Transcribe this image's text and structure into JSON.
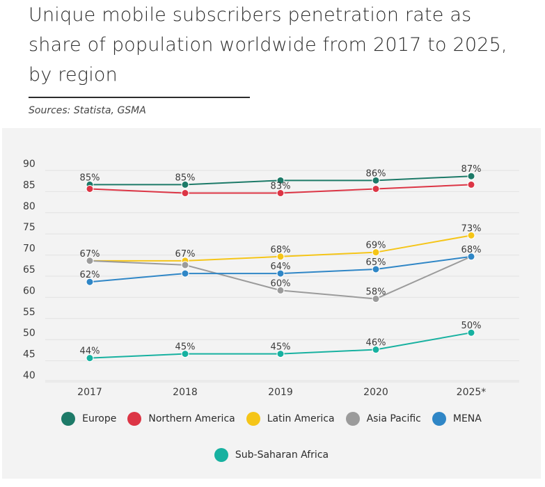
{
  "header": {
    "title": "Unique mobile subscribers penetration rate as share of population worldwide from 2017 to 2025, by region",
    "sources": "Sources: Statista, GSMA"
  },
  "chart_data": {
    "type": "line",
    "categories": [
      "2017",
      "2018",
      "2019",
      "2020",
      "2025*"
    ],
    "yticks": [
      "90",
      "85",
      "80",
      "75",
      "70",
      "65",
      "60",
      "55",
      "50",
      "45",
      "40"
    ],
    "ylim": [
      40,
      90
    ],
    "grid": true,
    "legend_placement": "bottom",
    "series": [
      {
        "name": "Europe",
        "color": "#1d7a68",
        "values": [
          85,
          85,
          86,
          86,
          87
        ],
        "labels": [
          "85%",
          "85%",
          "",
          "86%",
          "87%"
        ]
      },
      {
        "name": "Northern America",
        "color": "#dc3545",
        "values": [
          84,
          83,
          83,
          84,
          85
        ],
        "labels": [
          "",
          "",
          "83%",
          "",
          ""
        ]
      },
      {
        "name": "Latin America",
        "color": "#f5c518",
        "values": [
          67,
          67,
          68,
          69,
          73
        ],
        "labels": [
          "67%",
          "67%",
          "68%",
          "69%",
          "73%"
        ]
      },
      {
        "name": "Asia Pacific",
        "color": "#9b9b9b",
        "values": [
          67,
          66,
          60,
          58,
          68
        ],
        "labels": [
          "",
          "",
          "60%",
          "58%",
          ""
        ]
      },
      {
        "name": "MENA",
        "color": "#2f86c6",
        "values": [
          62,
          64,
          64,
          65,
          68
        ],
        "labels": [
          "62%",
          "",
          "64%",
          "65%",
          "68%"
        ]
      },
      {
        "name": "Sub-Saharan Africa",
        "color": "#17b1a0",
        "values": [
          44,
          45,
          45,
          46,
          50
        ],
        "labels": [
          "44%",
          "45%",
          "45%",
          "46%",
          "50%"
        ]
      }
    ]
  }
}
